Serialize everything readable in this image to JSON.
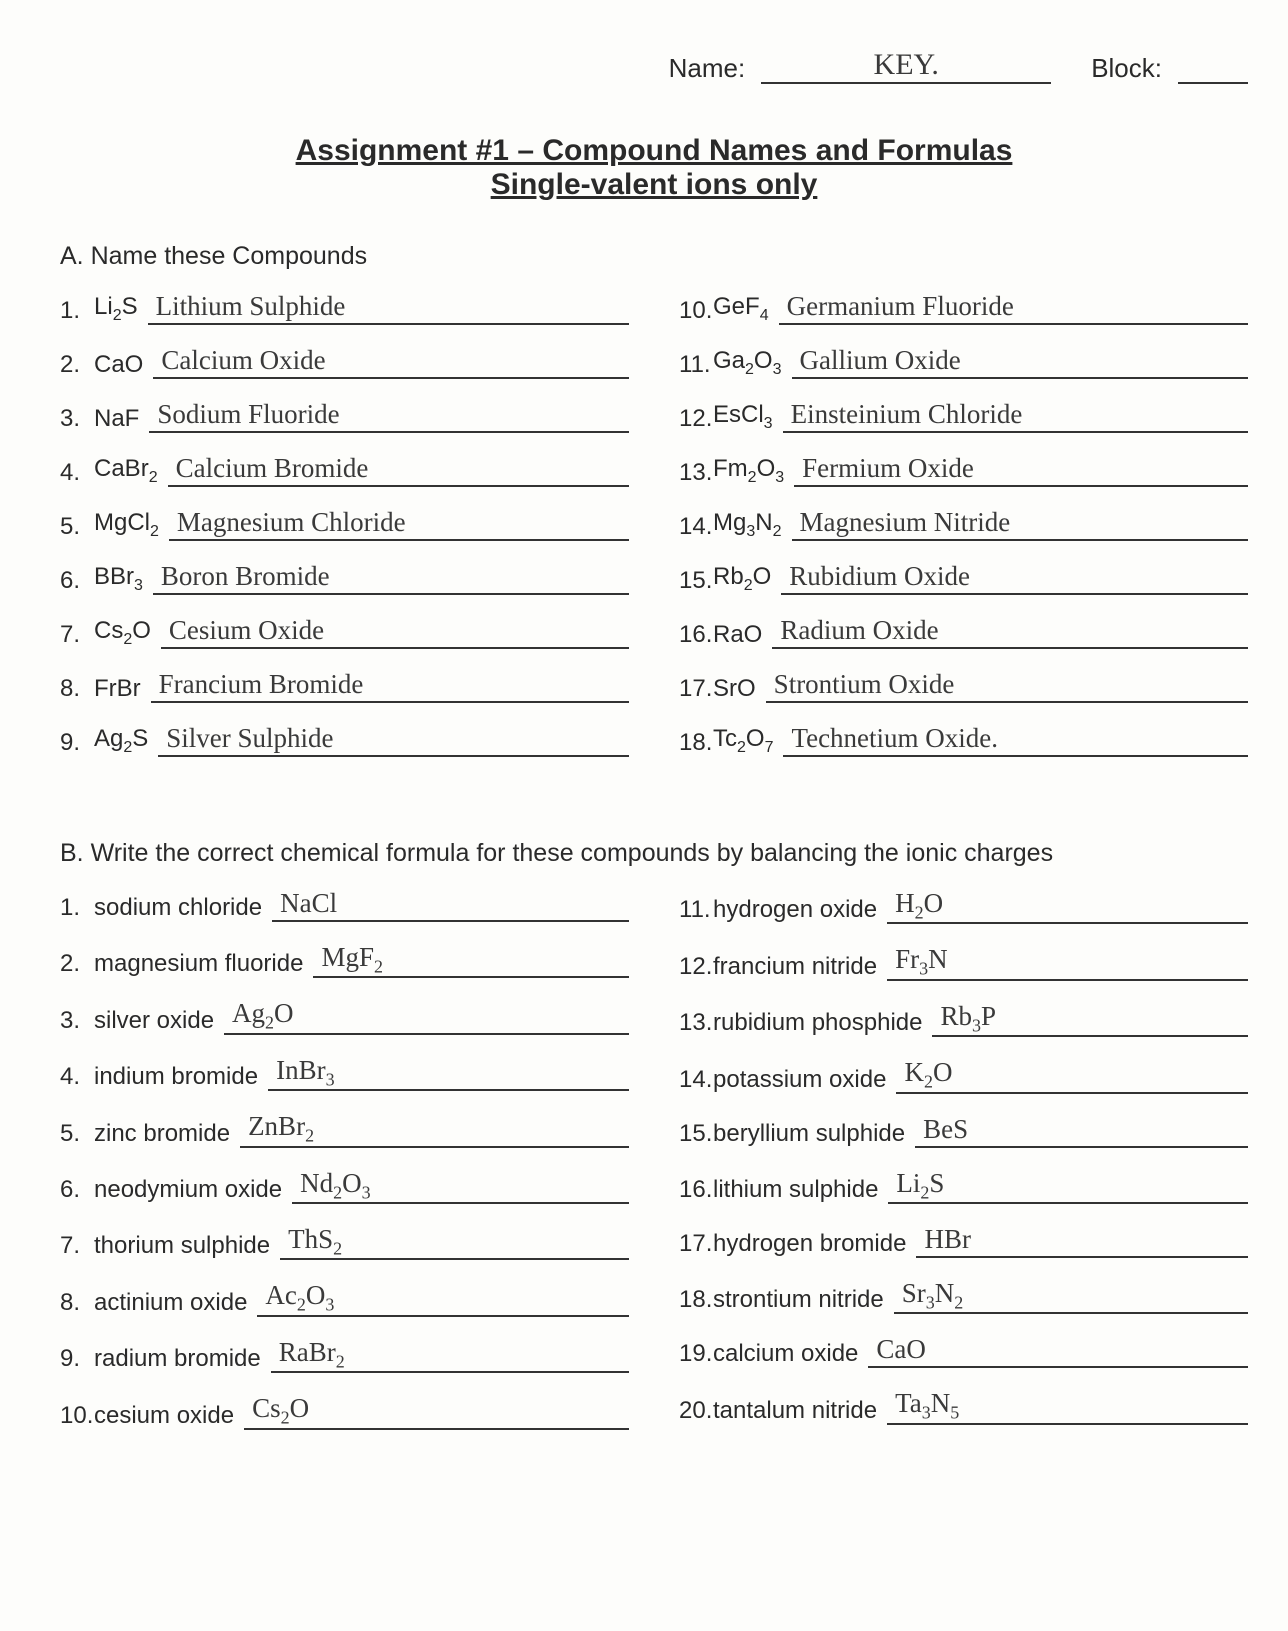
{
  "header": {
    "name_label": "Name:",
    "name_value": "KEY.",
    "block_label": "Block:",
    "block_value": ""
  },
  "title": {
    "line1": "Assignment #1 – Compound Names and Formulas",
    "line2": "Single-valent ions only"
  },
  "sectionA": {
    "label": "A.  Name these Compounds",
    "left": [
      {
        "num": "1.",
        "formula": "Li₂S",
        "answer": "Lithium Sulphide"
      },
      {
        "num": "2.",
        "formula": "CaO",
        "answer": "Calcium Oxide"
      },
      {
        "num": "3.",
        "formula": "NaF",
        "answer": "Sodium Fluoride"
      },
      {
        "num": "4.",
        "formula": "CaBr₂",
        "answer": "Calcium Bromide"
      },
      {
        "num": "5.",
        "formula": "MgCl₂",
        "answer": "Magnesium Chloride"
      },
      {
        "num": "6.",
        "formula": "BBr₃",
        "answer": "Boron Bromide"
      },
      {
        "num": "7.",
        "formula": "Cs₂O",
        "answer": "Cesium Oxide"
      },
      {
        "num": "8.",
        "formula": "FrBr",
        "answer": "Francium Bromide"
      },
      {
        "num": "9.",
        "formula": "Ag₂S",
        "answer": "Silver Sulphide"
      }
    ],
    "right": [
      {
        "num": "10.",
        "formula": "GeF₄",
        "answer": "Germanium Fluoride"
      },
      {
        "num": "11.",
        "formula": "Ga₂O₃",
        "answer": "Gallium Oxide"
      },
      {
        "num": "12.",
        "formula": "EsCl₃",
        "answer": "Einsteinium Chloride"
      },
      {
        "num": "13.",
        "formula": "Fm₂O₃",
        "answer": "Fermium Oxide"
      },
      {
        "num": "14.",
        "formula": "Mg₃N₂",
        "answer": "Magnesium Nitride"
      },
      {
        "num": "15.",
        "formula": "Rb₂O",
        "answer": "Rubidium Oxide"
      },
      {
        "num": "16.",
        "formula": "RaO",
        "answer": "Radium Oxide"
      },
      {
        "num": "17.",
        "formula": "SrO",
        "answer": "Strontium Oxide"
      },
      {
        "num": "18.",
        "formula": "Tc₂O₇",
        "answer": "Technetium Oxide."
      }
    ]
  },
  "sectionB": {
    "label": "B.  Write the correct chemical formula for these compounds by balancing the ionic charges",
    "left": [
      {
        "num": "1.",
        "name": "sodium chloride",
        "answer": "NaCl"
      },
      {
        "num": "2.",
        "name": "magnesium fluoride",
        "answer": "MgF₂"
      },
      {
        "num": "3.",
        "name": "silver oxide",
        "answer": "Ag₂O"
      },
      {
        "num": "4.",
        "name": "indium bromide",
        "answer": "InBr₃"
      },
      {
        "num": "5.",
        "name": "zinc bromide",
        "answer": "ZnBr₂"
      },
      {
        "num": "6.",
        "name": "neodymium oxide",
        "answer": "Nd₂O₃"
      },
      {
        "num": "7.",
        "name": "thorium sulphide",
        "answer": "ThS₂"
      },
      {
        "num": "8.",
        "name": "actinium oxide",
        "answer": "Ac₂O₃"
      },
      {
        "num": "9.",
        "name": "radium bromide",
        "answer": "RaBr₂"
      },
      {
        "num": "10.",
        "name": "cesium oxide",
        "answer": "Cs₂O"
      }
    ],
    "right": [
      {
        "num": "11.",
        "name": "hydrogen oxide",
        "answer": "H₂O"
      },
      {
        "num": "12.",
        "name": "francium nitride",
        "answer": "Fr₃N"
      },
      {
        "num": "13.",
        "name": "rubidium phosphide",
        "answer": "Rb₃P"
      },
      {
        "num": "14.",
        "name": "potassium oxide",
        "answer": "K₂O"
      },
      {
        "num": "15.",
        "name": "beryllium sulphide",
        "answer": "BeS"
      },
      {
        "num": "16.",
        "name": "lithium sulphide",
        "answer": "Li₂S"
      },
      {
        "num": "17.",
        "name": "hydrogen bromide",
        "answer": "HBr"
      },
      {
        "num": "18.",
        "name": "strontium nitride",
        "answer": "Sr₃N₂"
      },
      {
        "num": "19.",
        "name": "calcium oxide",
        "answer": "CaO"
      },
      {
        "num": "20.",
        "name": "tantalum nitride",
        "answer": "Ta₃N₅"
      }
    ]
  }
}
